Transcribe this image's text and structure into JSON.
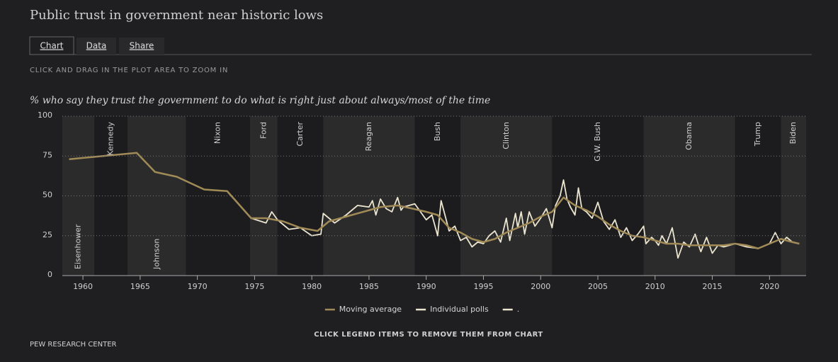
{
  "ui": {
    "tabs": [
      "Chart",
      "Data",
      "Share"
    ],
    "instruction": "CLICK AND DRAG IN THE PLOT AREA TO ZOOM IN",
    "legend_hint": "CLICK LEGEND ITEMS TO REMOVE THEM FROM CHART",
    "source": "PEW RESEARCH CENTER"
  },
  "chart_data": {
    "type": "line",
    "title": "Public trust in government near historic lows",
    "subtitle": "% who say they trust the government to do what is right just about always/most of the time",
    "xlim": [
      1958.2,
      2023.2
    ],
    "xticks": [
      1960,
      1965,
      1970,
      1975,
      1980,
      1985,
      1990,
      1995,
      2000,
      2005,
      2010,
      2015,
      2020
    ],
    "ylim": [
      0,
      100
    ],
    "yticks": [
      0,
      25,
      50,
      75,
      100
    ],
    "grid": true,
    "presidents": [
      {
        "name": "Eisenhower",
        "start": 1953,
        "end": 1961
      },
      {
        "name": "Kennedy",
        "start": 1961,
        "end": 1963.9
      },
      {
        "name": "Johnson",
        "start": 1963.9,
        "end": 1969
      },
      {
        "name": "Nixon",
        "start": 1969,
        "end": 1974.6
      },
      {
        "name": "Ford",
        "start": 1974.6,
        "end": 1977
      },
      {
        "name": "Carter",
        "start": 1977,
        "end": 1981
      },
      {
        "name": "Reagan",
        "start": 1981,
        "end": 1989
      },
      {
        "name": "Bush",
        "start": 1989,
        "end": 1993
      },
      {
        "name": "Clinton",
        "start": 1993,
        "end": 2001
      },
      {
        "name": "G.W. Bush",
        "start": 2001,
        "end": 2009
      },
      {
        "name": "Obama",
        "start": 2009,
        "end": 2017
      },
      {
        "name": "Trump",
        "start": 2017,
        "end": 2021
      },
      {
        "name": "Biden",
        "start": 2021,
        "end": 2025
      }
    ],
    "series": [
      {
        "name": "Moving average",
        "color": "#a08a56",
        "x": [
          1958.8,
          1964.7,
          1966.3,
          1968.2,
          1970.6,
          1972.6,
          1974.7,
          1976,
          1977.5,
          1979,
          1980.5,
          1981.5,
          1983,
          1984.5,
          1986,
          1987.5,
          1988.8,
          1990,
          1991,
          1992,
          1993,
          1994,
          1995,
          1996,
          1997,
          1998,
          1999,
          2000,
          2001,
          2002,
          2003,
          2004,
          2005,
          2006,
          2007,
          2008,
          2009,
          2010,
          2011,
          2012,
          2013,
          2014,
          2015,
          2016,
          2017,
          2018,
          2019,
          2020,
          2021,
          2022,
          2022.6
        ],
        "values": [
          73,
          77,
          65,
          62,
          54,
          53,
          36,
          36,
          34,
          30,
          28,
          34,
          37,
          40,
          43,
          44,
          42,
          40,
          38,
          30,
          27,
          23,
          21,
          23,
          27,
          30,
          33,
          37,
          40,
          49,
          44,
          41,
          37,
          32,
          28,
          25,
          24,
          22,
          20,
          20,
          19,
          19,
          19,
          19,
          20,
          19,
          17,
          20,
          23,
          21,
          20
        ]
      },
      {
        "name": "Individual polls",
        "color": "#ebe5cf",
        "x": [
          1958.8,
          1964.7,
          1966.3,
          1968.2,
          1970.6,
          1972.6,
          1974.7,
          1976,
          1976.5,
          1977,
          1978,
          1979,
          1980,
          1980.8,
          1981,
          1982,
          1983,
          1984,
          1985,
          1985.3,
          1985.6,
          1986,
          1986.5,
          1987,
          1987.5,
          1987.8,
          1988,
          1989,
          1990,
          1990.5,
          1991,
          1991.3,
          1991.6,
          1992,
          1992.5,
          1993,
          1993.5,
          1994,
          1994.5,
          1995,
          1995.5,
          1996,
          1996.5,
          1997,
          1997.3,
          1997.8,
          1998,
          1998.3,
          1998.6,
          1999,
          1999.5,
          2000,
          2000.5,
          2001,
          2001.3,
          2001.7,
          2002,
          2002.3,
          2002.6,
          2003,
          2003.3,
          2003.6,
          2004,
          2004.5,
          2005,
          2005.5,
          2006,
          2006.5,
          2007,
          2007.5,
          2008,
          2008.5,
          2009,
          2009.2,
          2009.7,
          2010,
          2010.3,
          2010.6,
          2011,
          2011.5,
          2012,
          2012.5,
          2013,
          2013.5,
          2013.8,
          2014,
          2014.5,
          2015,
          2015.5,
          2016,
          2017,
          2018,
          2019,
          2020,
          2020.5,
          2021,
          2021.5,
          2022,
          2022.6
        ],
        "values": [
          73,
          77,
          65,
          62,
          54,
          53,
          36,
          33,
          40,
          35,
          29,
          30,
          25,
          26,
          39,
          33,
          38,
          44,
          43,
          47,
          38,
          48,
          42,
          40,
          49,
          41,
          43,
          45,
          35,
          38,
          25,
          47,
          39,
          28,
          31,
          22,
          24,
          18,
          21,
          20,
          25,
          28,
          21,
          36,
          22,
          39,
          30,
          40,
          26,
          40,
          31,
          36,
          42,
          30,
          44,
          50,
          60,
          48,
          43,
          38,
          55,
          42,
          40,
          36,
          46,
          34,
          29,
          35,
          24,
          30,
          22,
          26,
          31,
          20,
          24,
          22,
          19,
          25,
          20,
          30,
          11,
          21,
          18,
          26,
          19,
          15,
          24,
          14,
          19,
          18,
          20,
          18,
          17,
          20,
          27,
          20,
          24,
          21,
          20
        ]
      },
      {
        "name": ".",
        "color": "#ebe5cf",
        "x": [],
        "values": []
      }
    ]
  }
}
